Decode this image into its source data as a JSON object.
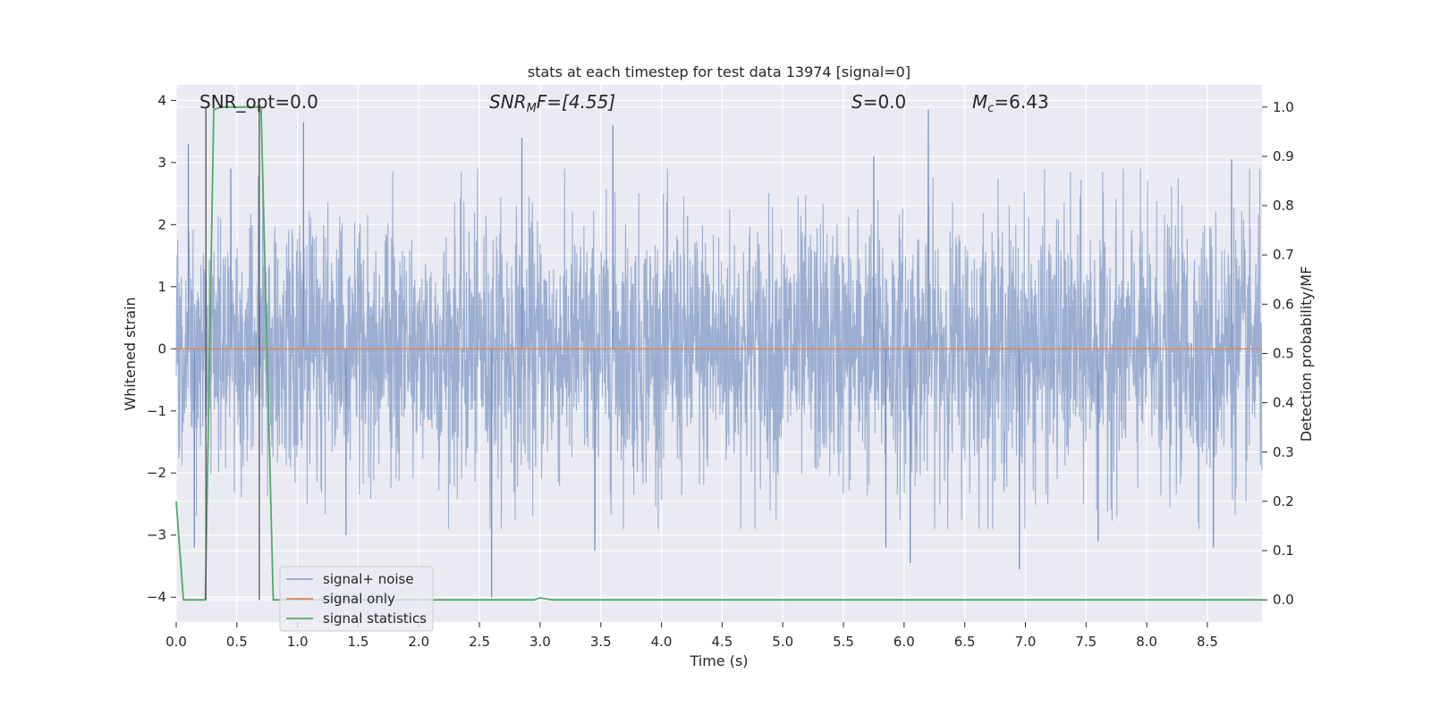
{
  "chart_data": {
    "type": "line",
    "title": "stats at each timestep for test data 13974 [signal=0]",
    "xlabel": "Time (s)",
    "ylabel": "Whitened strain",
    "y2label": "Detection probability/MF",
    "xlim": [
      0.0,
      8.95
    ],
    "ylim": [
      -4.4,
      4.25
    ],
    "y2lim": [
      -0.045,
      1.045
    ],
    "xticks": [
      "0.0",
      "0.5",
      "1.0",
      "1.5",
      "2.0",
      "2.5",
      "3.0",
      "3.5",
      "4.0",
      "4.5",
      "5.0",
      "5.5",
      "6.0",
      "6.5",
      "7.0",
      "7.5",
      "8.0",
      "8.5"
    ],
    "yticks": [
      "4",
      "3",
      "2",
      "1",
      "0",
      "−1",
      "−2",
      "−3",
      "−4"
    ],
    "y2ticks": [
      "1.0",
      "0.9",
      "0.8",
      "0.7",
      "0.6",
      "0.5",
      "0.4",
      "0.3",
      "0.2",
      "0.1",
      "0.0"
    ],
    "annotations": {
      "snr_opt": "SNR_opt=0.0",
      "snr_mf_base": "SNR",
      "snr_mf_sub": "M",
      "snr_mf_rest": "F=[4.55]",
      "s_var": "S",
      "s_rest": "=0.0",
      "mc_var": "M",
      "mc_sub": "c",
      "mc_rest": "=6.43"
    },
    "legend": {
      "placement": "lower-left",
      "entries": [
        "signal+ noise",
        "signal only",
        "signal statistics"
      ]
    },
    "series": [
      {
        "name": "signal+ noise",
        "description": "whitened noise, amplitude envelope roughly ±2.5 with spikes to ±3.9",
        "peak_spikes": [
          {
            "t": 0.1,
            "y": 3.3
          },
          {
            "t": 0.45,
            "y": 2.9
          },
          {
            "t": 1.05,
            "y": 3.65
          },
          {
            "t": 2.85,
            "y": 3.4
          },
          {
            "t": 3.6,
            "y": 3.6
          },
          {
            "t": 5.75,
            "y": 3.1
          },
          {
            "t": 6.2,
            "y": 3.85
          },
          {
            "t": 8.7,
            "y": 3.05
          },
          {
            "t": 0.15,
            "y": -3.2
          },
          {
            "t": 1.4,
            "y": -3.0
          },
          {
            "t": 2.6,
            "y": -4.0
          },
          {
            "t": 3.45,
            "y": -3.25
          },
          {
            "t": 5.85,
            "y": -3.2
          },
          {
            "t": 6.05,
            "y": -3.45
          },
          {
            "t": 6.95,
            "y": -3.55
          },
          {
            "t": 7.6,
            "y": -3.1
          },
          {
            "t": 8.55,
            "y": -3.2
          }
        ]
      },
      {
        "name": "signal only",
        "x": [
          0.0,
          8.95
        ],
        "y": [
          0.0,
          0.0
        ]
      },
      {
        "name": "signal statistics",
        "axis": "right",
        "x": [
          0.0,
          0.06,
          0.24,
          0.31,
          0.37,
          0.68,
          0.7,
          0.8,
          2.95,
          3.0,
          3.1,
          8.95
        ],
        "y": [
          0.2,
          0.0,
          0.0,
          0.995,
          1.0,
          1.0,
          0.995,
          0.0,
          0.0,
          0.004,
          0.0,
          0.0
        ]
      }
    ],
    "vlines": [
      0.245,
      0.685
    ],
    "colors": {
      "plot_bg": "#EAEAF2",
      "grid": "#FFFFFF",
      "noise": "#4C72B0",
      "signal": "#DD8452",
      "stats": "#55A868",
      "vline": "#555555",
      "text": "#262626"
    }
  }
}
